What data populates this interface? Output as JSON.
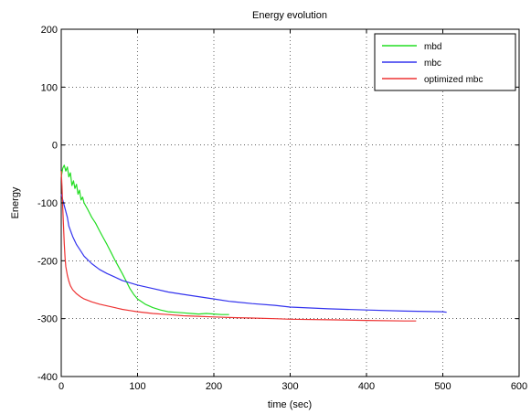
{
  "chart_data": {
    "type": "line",
    "title": "Energy evolution",
    "xlabel": "time (sec)",
    "ylabel": "Energy",
    "xlim": [
      0,
      600
    ],
    "ylim": [
      -400,
      200
    ],
    "xticks": [
      0,
      100,
      200,
      300,
      400,
      500,
      600
    ],
    "yticks": [
      -400,
      -300,
      -200,
      -100,
      0,
      100,
      200
    ],
    "grid": true,
    "legend_position": "top-right",
    "series": [
      {
        "name": "mbd",
        "color": "#22dd22",
        "x": [
          0,
          2,
          4,
          6,
          8,
          10,
          12,
          14,
          16,
          18,
          20,
          22,
          24,
          26,
          28,
          30,
          35,
          40,
          45,
          50,
          55,
          60,
          65,
          70,
          75,
          80,
          85,
          90,
          95,
          100,
          110,
          120,
          130,
          140,
          150,
          160,
          170,
          180,
          190,
          200,
          210,
          220
        ],
        "y": [
          -55,
          -40,
          -35,
          -45,
          -38,
          -55,
          -48,
          -70,
          -62,
          -75,
          -68,
          -85,
          -78,
          -95,
          -90,
          -100,
          -112,
          -125,
          -135,
          -148,
          -160,
          -172,
          -185,
          -198,
          -210,
          -222,
          -235,
          -248,
          -258,
          -266,
          -275,
          -281,
          -285,
          -288,
          -289,
          -290,
          -291,
          -292,
          -291,
          -292,
          -293,
          -293
        ]
      },
      {
        "name": "mbc",
        "color": "#3333ee",
        "x": [
          0,
          2,
          5,
          8,
          10,
          15,
          20,
          25,
          30,
          40,
          50,
          60,
          70,
          80,
          90,
          100,
          120,
          140,
          160,
          180,
          200,
          220,
          250,
          280,
          300,
          350,
          400,
          450,
          500,
          505
        ],
        "y": [
          -85,
          -95,
          -110,
          -125,
          -140,
          -158,
          -172,
          -182,
          -192,
          -205,
          -215,
          -222,
          -228,
          -234,
          -238,
          -242,
          -248,
          -254,
          -258,
          -262,
          -266,
          -270,
          -274,
          -277,
          -280,
          -283,
          -285,
          -287,
          -288,
          -289
        ]
      },
      {
        "name": "optimized mbc",
        "color": "#ee3333",
        "x": [
          0,
          1,
          2,
          3,
          4,
          5,
          6,
          8,
          10,
          12,
          15,
          20,
          25,
          30,
          40,
          50,
          60,
          70,
          80,
          90,
          100,
          120,
          140,
          160,
          180,
          200,
          220,
          250,
          280,
          300,
          350,
          400,
          450,
          465
        ],
        "y": [
          -45,
          -70,
          -110,
          -140,
          -170,
          -195,
          -210,
          -225,
          -235,
          -243,
          -250,
          -257,
          -262,
          -266,
          -271,
          -275,
          -278,
          -281,
          -284,
          -286,
          -288,
          -291,
          -293,
          -295,
          -296,
          -297,
          -298,
          -299,
          -300,
          -301,
          -302,
          -303,
          -304,
          -304
        ]
      }
    ]
  }
}
